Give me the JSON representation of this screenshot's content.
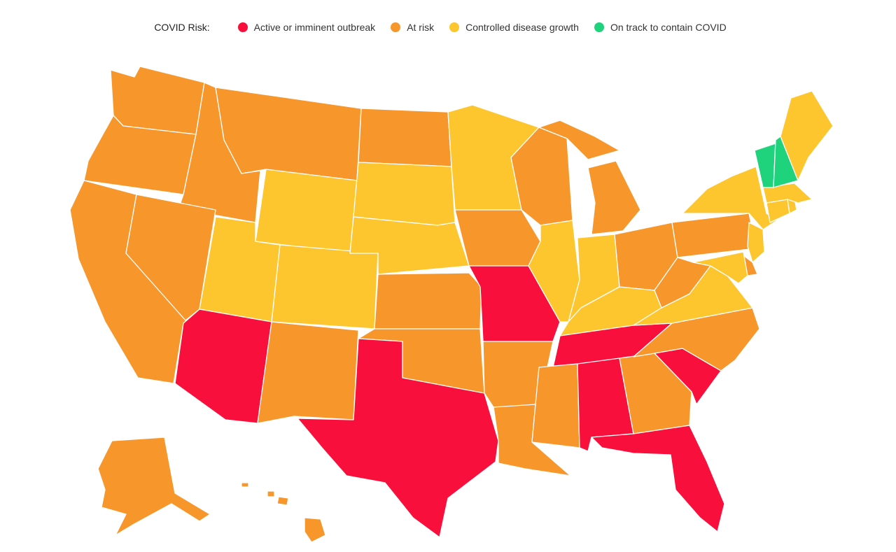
{
  "legend": {
    "title": "COVID Risk:",
    "items": [
      {
        "key": "outbreak",
        "label": "Active or imminent outbreak",
        "color": "#f90f3b"
      },
      {
        "key": "risk",
        "label": "At risk",
        "color": "#f7962b"
      },
      {
        "key": "controlled",
        "label": "Controlled disease growth",
        "color": "#fdc52e"
      },
      {
        "key": "contain",
        "label": "On track to contain COVID",
        "color": "#1fd27c"
      }
    ]
  },
  "states": [
    {
      "name": "Washington",
      "risk": "risk"
    },
    {
      "name": "Oregon",
      "risk": "risk"
    },
    {
      "name": "California",
      "risk": "risk"
    },
    {
      "name": "Idaho",
      "risk": "risk"
    },
    {
      "name": "Nevada",
      "risk": "risk"
    },
    {
      "name": "Montana",
      "risk": "risk"
    },
    {
      "name": "Wyoming",
      "risk": "controlled"
    },
    {
      "name": "Utah",
      "risk": "controlled"
    },
    {
      "name": "Colorado",
      "risk": "controlled"
    },
    {
      "name": "Arizona",
      "risk": "outbreak"
    },
    {
      "name": "New Mexico",
      "risk": "risk"
    },
    {
      "name": "North Dakota",
      "risk": "risk"
    },
    {
      "name": "South Dakota",
      "risk": "controlled"
    },
    {
      "name": "Nebraska",
      "risk": "controlled"
    },
    {
      "name": "Kansas",
      "risk": "risk"
    },
    {
      "name": "Oklahoma",
      "risk": "risk"
    },
    {
      "name": "Texas",
      "risk": "outbreak"
    },
    {
      "name": "Minnesota",
      "risk": "controlled"
    },
    {
      "name": "Iowa",
      "risk": "risk"
    },
    {
      "name": "Missouri",
      "risk": "outbreak"
    },
    {
      "name": "Arkansas",
      "risk": "risk"
    },
    {
      "name": "Louisiana",
      "risk": "risk"
    },
    {
      "name": "Wisconsin",
      "risk": "risk"
    },
    {
      "name": "Illinois",
      "risk": "controlled"
    },
    {
      "name": "Michigan",
      "risk": "risk"
    },
    {
      "name": "Indiana",
      "risk": "controlled"
    },
    {
      "name": "Ohio",
      "risk": "risk"
    },
    {
      "name": "Kentucky",
      "risk": "controlled"
    },
    {
      "name": "Tennessee",
      "risk": "outbreak"
    },
    {
      "name": "Mississippi",
      "risk": "risk"
    },
    {
      "name": "Alabama",
      "risk": "outbreak"
    },
    {
      "name": "Georgia",
      "risk": "risk"
    },
    {
      "name": "Florida",
      "risk": "outbreak"
    },
    {
      "name": "South Carolina",
      "risk": "outbreak"
    },
    {
      "name": "North Carolina",
      "risk": "risk"
    },
    {
      "name": "Virginia",
      "risk": "controlled"
    },
    {
      "name": "West Virginia",
      "risk": "risk"
    },
    {
      "name": "Pennsylvania",
      "risk": "risk"
    },
    {
      "name": "New York",
      "risk": "controlled"
    },
    {
      "name": "New Jersey",
      "risk": "controlled"
    },
    {
      "name": "Delaware",
      "risk": "risk"
    },
    {
      "name": "Maryland",
      "risk": "controlled"
    },
    {
      "name": "Connecticut",
      "risk": "controlled"
    },
    {
      "name": "Rhode Island",
      "risk": "controlled"
    },
    {
      "name": "Massachusetts",
      "risk": "controlled"
    },
    {
      "name": "Vermont",
      "risk": "contain"
    },
    {
      "name": "New Hampshire",
      "risk": "contain"
    },
    {
      "name": "Maine",
      "risk": "controlled"
    },
    {
      "name": "Alaska",
      "risk": "risk"
    },
    {
      "name": "Hawaii",
      "risk": "risk"
    }
  ]
}
